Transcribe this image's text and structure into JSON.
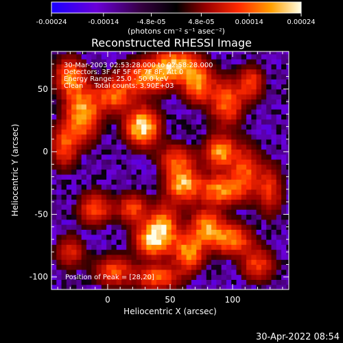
{
  "chart_data": {
    "type": "heatmap",
    "title": "Reconstructed RHESSI Image",
    "xlabel": "Heliocentric X (arcsec)",
    "ylabel": "Heliocentric Y (arcsec)",
    "x_ticks": [
      0,
      50,
      100
    ],
    "y_ticks": [
      -100,
      -50,
      0,
      50
    ],
    "xlim": [
      -45,
      145
    ],
    "ylim": [
      -110,
      80
    ],
    "colorbar": {
      "ticks": [
        "-0.00024",
        "-0.00014",
        "-4.8e-05",
        "4.8e-05",
        "0.00014",
        "0.00024"
      ],
      "units_label": "(photons cm⁻² s⁻¹ asec⁻²)",
      "range": [
        -0.00024,
        0.00024
      ]
    },
    "info_lines": [
      "30-Mar-2003 02:53:28.000 to 02:58:28.000",
      "Detectors: 3F 4F 5F 6F 7F 8F, Att 0",
      "Energy Range: 25.0 - 50.0 keV",
      "Clean     Total counts: 3.90E+03"
    ],
    "peak_label": "Position of Peak = [28,20]",
    "peak": [
      28,
      20
    ],
    "timestamp": "30-Apr-2022 08:54",
    "bright_features": [
      {
        "x": -30,
        "y": 60,
        "sx": 8,
        "sy": 10,
        "a": 0.7
      },
      {
        "x": -20,
        "y": 30,
        "sx": 9,
        "sy": 14,
        "a": 0.85
      },
      {
        "x": -35,
        "y": 5,
        "sx": 7,
        "sy": 12,
        "a": 0.55
      },
      {
        "x": 5,
        "y": 45,
        "sx": 10,
        "sy": 9,
        "a": 0.6
      },
      {
        "x": 28,
        "y": 20,
        "sx": 9,
        "sy": 10,
        "a": 1.0
      },
      {
        "x": 32,
        "y": 60,
        "sx": 14,
        "sy": 9,
        "a": 0.7
      },
      {
        "x": 55,
        "y": 70,
        "sx": 12,
        "sy": 8,
        "a": 0.75
      },
      {
        "x": 72,
        "y": 55,
        "sx": 8,
        "sy": 10,
        "a": 0.75
      },
      {
        "x": 95,
        "y": 40,
        "sx": 9,
        "sy": 12,
        "a": 0.65
      },
      {
        "x": 115,
        "y": 55,
        "sx": 7,
        "sy": 9,
        "a": 0.5
      },
      {
        "x": 90,
        "y": 0,
        "sx": 8,
        "sy": 9,
        "a": 0.75
      },
      {
        "x": 55,
        "y": -5,
        "sx": 10,
        "sy": 8,
        "a": 0.45
      },
      {
        "x": 110,
        "y": -15,
        "sx": 8,
        "sy": 14,
        "a": 0.55
      },
      {
        "x": 60,
        "y": -25,
        "sx": 9,
        "sy": 10,
        "a": 0.8
      },
      {
        "x": 90,
        "y": -30,
        "sx": 12,
        "sy": 8,
        "a": 0.7
      },
      {
        "x": -10,
        "y": -45,
        "sx": 9,
        "sy": 9,
        "a": 0.55
      },
      {
        "x": 20,
        "y": -45,
        "sx": 8,
        "sy": 8,
        "a": 0.55
      },
      {
        "x": 35,
        "y": -70,
        "sx": 9,
        "sy": 9,
        "a": 0.8
      },
      {
        "x": 45,
        "y": -60,
        "sx": 8,
        "sy": 12,
        "a": 0.7
      },
      {
        "x": 80,
        "y": -60,
        "sx": 9,
        "sy": 10,
        "a": 0.7
      },
      {
        "x": 100,
        "y": -70,
        "sx": 10,
        "sy": 8,
        "a": 0.7
      },
      {
        "x": 65,
        "y": -80,
        "sx": 8,
        "sy": 10,
        "a": 0.75
      },
      {
        "x": 40,
        "y": -100,
        "sx": 12,
        "sy": 7,
        "a": 0.6
      },
      {
        "x": 5,
        "y": -95,
        "sx": 10,
        "sy": 8,
        "a": 0.55
      },
      {
        "x": 120,
        "y": -90,
        "sx": 9,
        "sy": 9,
        "a": 0.5
      },
      {
        "x": 130,
        "y": -30,
        "sx": 7,
        "sy": 14,
        "a": 0.45
      },
      {
        "x": -30,
        "y": -80,
        "sx": 8,
        "sy": 9,
        "a": 0.4
      }
    ]
  }
}
